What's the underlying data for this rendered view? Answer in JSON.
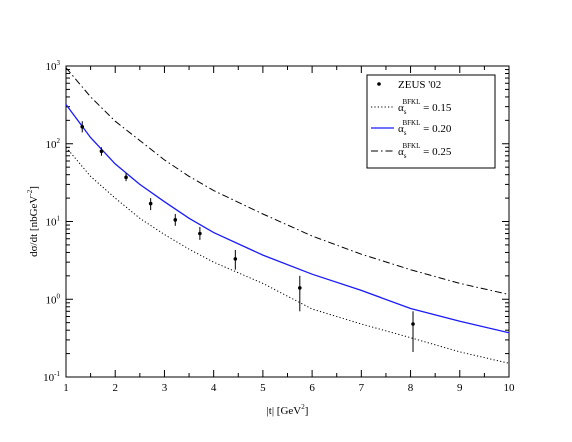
{
  "chart_data": {
    "type": "line",
    "xlabel": {
      "main": "|t|   [GeV",
      "sup": "2",
      "close": "]"
    },
    "ylabel": {
      "main": "dσ/dt   [nbGeV",
      "sup": "-2",
      "close": "]"
    },
    "xlim": [
      1,
      10
    ],
    "ylim": [
      0.1,
      1000
    ],
    "y_scale": "log",
    "grid": false,
    "legend_position": "top-right",
    "x_ticks": [
      "1",
      "2",
      "3",
      "4",
      "5",
      "6",
      "7",
      "8",
      "9",
      "10"
    ],
    "y_ticks": [
      {
        "base": "10",
        "exp": "-1",
        "value": 0.1
      },
      {
        "base": "10",
        "exp": "0",
        "value": 1
      },
      {
        "base": "10",
        "exp": "1",
        "value": 10
      },
      {
        "base": "10",
        "exp": "2",
        "value": 100
      },
      {
        "base": "10",
        "exp": "3",
        "value": 1000
      }
    ],
    "data_points": {
      "name": "ZEUS  '02",
      "x": [
        1.33,
        1.72,
        2.22,
        2.72,
        3.22,
        3.72,
        4.44,
        5.75,
        8.05
      ],
      "y": [
        165,
        80,
        37,
        17,
        10.5,
        7,
        3.3,
        1.4,
        0.48
      ],
      "y_low": [
        140,
        70,
        33,
        14,
        8.8,
        5.8,
        2.4,
        0.7,
        0.21
      ],
      "y_high": [
        195,
        90,
        42,
        20,
        12.5,
        8.5,
        4.3,
        2.0,
        0.7
      ]
    },
    "series": [
      {
        "label_main": "α",
        "label_sub": "s",
        "label_sup": "BFKL",
        "label_value": "= 0.15",
        "style": "dotted",
        "color": "#000000",
        "x": [
          1,
          1.5,
          2,
          2.5,
          3,
          3.5,
          4,
          5,
          6,
          7,
          8,
          9,
          10
        ],
        "y": [
          90,
          38,
          20,
          11,
          6.8,
          4.4,
          3.0,
          1.6,
          0.75,
          0.48,
          0.32,
          0.21,
          0.15
        ]
      },
      {
        "label_main": "α",
        "label_sub": "s",
        "label_sup": "BFKL",
        "label_value": "= 0.20",
        "style": "solid",
        "color": "#1a1aff",
        "x": [
          1,
          1.5,
          2,
          2.5,
          3,
          3.5,
          4,
          5,
          6,
          7,
          8,
          9,
          10
        ],
        "y": [
          320,
          120,
          55,
          30,
          18,
          11,
          7.2,
          3.7,
          2.1,
          1.3,
          0.76,
          0.52,
          0.37
        ]
      },
      {
        "label_main": "α",
        "label_sub": "s",
        "label_sup": "BFKL",
        "label_value": "= 0.25",
        "style": "dashdot",
        "color": "#000000",
        "x": [
          1,
          1.5,
          2,
          2.5,
          3,
          3.5,
          4,
          5,
          6,
          7,
          8,
          9,
          10
        ],
        "y": [
          950,
          400,
          195,
          110,
          62,
          38,
          25,
          12.5,
          6.5,
          3.8,
          2.4,
          1.6,
          1.15
        ]
      }
    ]
  }
}
